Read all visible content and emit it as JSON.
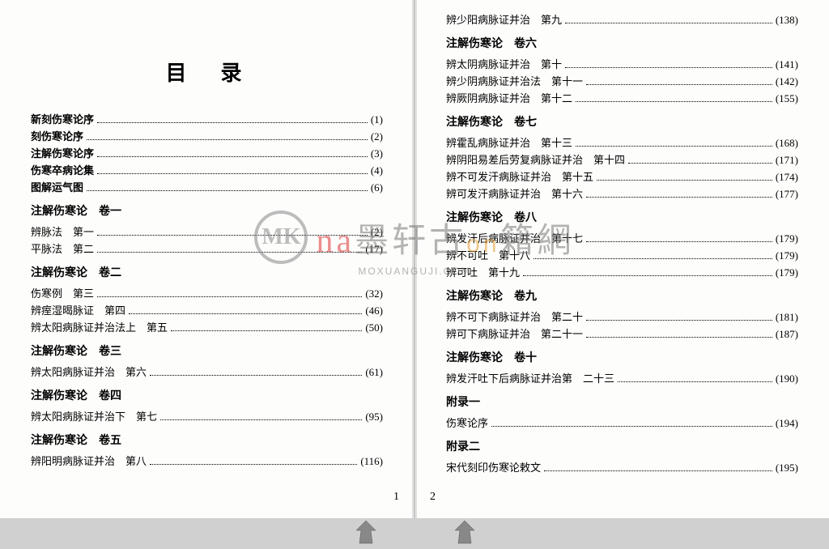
{
  "title": "目录",
  "watermark": {
    "cn_red": "na",
    "cn_gray1": "墨轩古",
    "cn_orange": "on",
    "cn_gray2": "籍網",
    "url": "MOXUANGUJI.COM",
    "logo": "MK"
  },
  "page_left_num": "1",
  "page_right_num": "2",
  "left": {
    "preface": [
      {
        "label": "新刻伤寒论序",
        "pg": "(1)"
      },
      {
        "label": "刻伤寒论序",
        "pg": "(2)"
      },
      {
        "label": "注解伤寒论序",
        "pg": "(3)"
      },
      {
        "label": "伤寒卒病论集",
        "pg": "(4)"
      },
      {
        "label": "图解运气图",
        "pg": "(6)"
      }
    ],
    "vols": [
      {
        "head": "注解伤寒论　卷一",
        "entries": [
          {
            "label": "辨脉法　第一",
            "pg": "(2)"
          },
          {
            "label": "平脉法　第二",
            "pg": "(17)"
          }
        ]
      },
      {
        "head": "注解伤寒论　卷二",
        "entries": [
          {
            "label": "伤寒例　第三",
            "pg": "(32)"
          },
          {
            "label": "辨痓湿暍脉证　第四",
            "pg": "(46)"
          },
          {
            "label": "辨太阳病脉证并治法上　第五",
            "pg": "(50)"
          }
        ]
      },
      {
        "head": "注解伤寒论　卷三",
        "entries": [
          {
            "label": "辨太阳病脉证并治　第六",
            "pg": "(61)"
          }
        ]
      },
      {
        "head": "注解伤寒论　卷四",
        "entries": [
          {
            "label": "辨太阳病脉证并治下　第七",
            "pg": "(95)"
          }
        ]
      },
      {
        "head": "注解伤寒论　卷五",
        "entries": [
          {
            "label": "辨阳明病脉证并治　第八",
            "pg": "(116)"
          }
        ]
      }
    ]
  },
  "right": {
    "top": [
      {
        "label": "辨少阳病脉证并治　第九",
        "pg": "(138)"
      }
    ],
    "vols": [
      {
        "head": "注解伤寒论　卷六",
        "entries": [
          {
            "label": "辨太阴病脉证并治　第十",
            "pg": "(141)"
          },
          {
            "label": "辨少阴病脉证并治法　第十一",
            "pg": "(142)"
          },
          {
            "label": "辨厥阴病脉证并治　第十二",
            "pg": "(155)"
          }
        ]
      },
      {
        "head": "注解伤寒论　卷七",
        "entries": [
          {
            "label": "辨霍乱病脉证并治　第十三",
            "pg": "(168)"
          },
          {
            "label": "辨阴阳易差后劳复病脉证并治　第十四",
            "pg": "(171)"
          },
          {
            "label": "辨不可发汗病脉证并治　第十五",
            "pg": "(174)"
          },
          {
            "label": "辨可发汗病脉证并治　第十六",
            "pg": "(177)"
          }
        ]
      },
      {
        "head": "注解伤寒论　卷八",
        "entries": [
          {
            "label": "辨发汗后病脉证并治　第十七",
            "pg": "(179)"
          },
          {
            "label": "辨不可吐　第十八",
            "pg": "(179)"
          },
          {
            "label": "辨可吐　第十九",
            "pg": "(179)"
          }
        ]
      },
      {
        "head": "注解伤寒论　卷九",
        "entries": [
          {
            "label": "辨不可下病脉证并治　第二十",
            "pg": "(181)"
          },
          {
            "label": "辨可下病脉证并治　第二十一",
            "pg": "(187)"
          }
        ]
      },
      {
        "head": "注解伤寒论　卷十",
        "entries": [
          {
            "label": "辨发汗吐下后病脉证并治第　二十三",
            "pg": "(190)"
          }
        ]
      },
      {
        "head": "附录一",
        "entries": [
          {
            "label": "伤寒论序",
            "pg": "(194)"
          }
        ]
      },
      {
        "head": "附录二",
        "entries": [
          {
            "label": "宋代刻印伤寒论敕文",
            "pg": "(195)"
          }
        ]
      }
    ]
  }
}
